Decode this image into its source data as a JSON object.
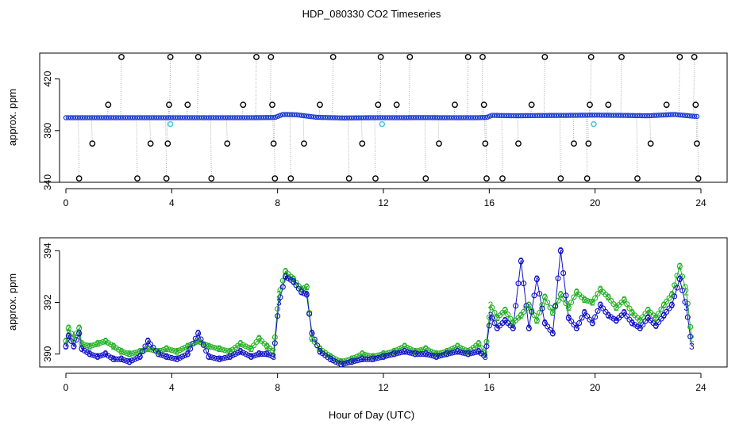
{
  "title": "HDP_080330  CO2 Timeseries",
  "xlabel": "Hour of Day (UTC)",
  "colors": {
    "outlier_marker": "#000000",
    "trace_line": "#999999",
    "main_marker": "#1f3fd0",
    "secondary_marker": "#40c8d8",
    "series2": "#22b022",
    "series3": "#1010c8"
  },
  "chart_data": [
    {
      "type": "scatter",
      "ylabel": "approx. ppm",
      "xlim": [
        0,
        24
      ],
      "ylim": [
        340,
        440
      ],
      "x_ticks": [
        0,
        4,
        8,
        12,
        16,
        20,
        24
      ],
      "x_tick_labels": [
        "0",
        "4",
        "8",
        "12",
        "16",
        "20",
        "24"
      ],
      "y_ticks": [
        340,
        380,
        420
      ],
      "y_tick_labels": [
        "340",
        "380",
        "420"
      ],
      "baseline": [
        {
          "x": 0.0,
          "y": 390.0
        },
        {
          "x": 1.0,
          "y": 390.0
        },
        {
          "x": 2.0,
          "y": 390.0
        },
        {
          "x": 3.0,
          "y": 390.0
        },
        {
          "x": 4.0,
          "y": 390.0
        },
        {
          "x": 5.0,
          "y": 390.0
        },
        {
          "x": 6.0,
          "y": 390.0
        },
        {
          "x": 7.0,
          "y": 390.0
        },
        {
          "x": 7.9,
          "y": 390.2
        },
        {
          "x": 8.2,
          "y": 392.5
        },
        {
          "x": 8.7,
          "y": 392.3
        },
        {
          "x": 9.2,
          "y": 391.0
        },
        {
          "x": 9.5,
          "y": 390.3
        },
        {
          "x": 10.5,
          "y": 389.8
        },
        {
          "x": 11.5,
          "y": 390.0
        },
        {
          "x": 12.5,
          "y": 390.0
        },
        {
          "x": 13.5,
          "y": 390.1
        },
        {
          "x": 14.5,
          "y": 390.0
        },
        {
          "x": 15.5,
          "y": 390.0
        },
        {
          "x": 15.9,
          "y": 390.2
        },
        {
          "x": 16.1,
          "y": 391.8
        },
        {
          "x": 17.0,
          "y": 391.5
        },
        {
          "x": 18.0,
          "y": 391.7
        },
        {
          "x": 19.0,
          "y": 391.8
        },
        {
          "x": 20.0,
          "y": 392.0
        },
        {
          "x": 21.0,
          "y": 391.8
        },
        {
          "x": 22.0,
          "y": 391.5
        },
        {
          "x": 23.0,
          "y": 392.5
        },
        {
          "x": 23.8,
          "y": 391.0
        }
      ],
      "secondary_points": [
        {
          "x": 3.95,
          "y": 385
        },
        {
          "x": 11.95,
          "y": 385
        },
        {
          "x": 19.95,
          "y": 385
        }
      ],
      "outliers": [
        {
          "x": 0.5,
          "y": 343
        },
        {
          "x": 1.0,
          "y": 370
        },
        {
          "x": 1.6,
          "y": 400
        },
        {
          "x": 2.1,
          "y": 437
        },
        {
          "x": 2.7,
          "y": 343
        },
        {
          "x": 3.2,
          "y": 370
        },
        {
          "x": 3.8,
          "y": 343
        },
        {
          "x": 3.85,
          "y": 370
        },
        {
          "x": 3.9,
          "y": 400
        },
        {
          "x": 3.95,
          "y": 437
        },
        {
          "x": 4.6,
          "y": 400
        },
        {
          "x": 5.0,
          "y": 437
        },
        {
          "x": 5.5,
          "y": 343
        },
        {
          "x": 6.1,
          "y": 370
        },
        {
          "x": 6.7,
          "y": 400
        },
        {
          "x": 7.2,
          "y": 437
        },
        {
          "x": 7.75,
          "y": 437
        },
        {
          "x": 7.8,
          "y": 400
        },
        {
          "x": 7.85,
          "y": 370
        },
        {
          "x": 7.9,
          "y": 343
        },
        {
          "x": 8.5,
          "y": 343
        },
        {
          "x": 9.0,
          "y": 370
        },
        {
          "x": 9.6,
          "y": 400
        },
        {
          "x": 10.1,
          "y": 437
        },
        {
          "x": 10.7,
          "y": 343
        },
        {
          "x": 11.2,
          "y": 370
        },
        {
          "x": 11.7,
          "y": 343
        },
        {
          "x": 11.8,
          "y": 400
        },
        {
          "x": 11.9,
          "y": 437
        },
        {
          "x": 12.5,
          "y": 400
        },
        {
          "x": 13.0,
          "y": 437
        },
        {
          "x": 13.6,
          "y": 343
        },
        {
          "x": 14.1,
          "y": 370
        },
        {
          "x": 14.7,
          "y": 400
        },
        {
          "x": 15.2,
          "y": 437
        },
        {
          "x": 15.75,
          "y": 437
        },
        {
          "x": 15.8,
          "y": 400
        },
        {
          "x": 15.85,
          "y": 370
        },
        {
          "x": 15.9,
          "y": 343
        },
        {
          "x": 16.5,
          "y": 343
        },
        {
          "x": 17.1,
          "y": 370
        },
        {
          "x": 17.6,
          "y": 400
        },
        {
          "x": 18.1,
          "y": 437
        },
        {
          "x": 18.7,
          "y": 343
        },
        {
          "x": 19.2,
          "y": 370
        },
        {
          "x": 19.7,
          "y": 343
        },
        {
          "x": 19.75,
          "y": 370
        },
        {
          "x": 19.8,
          "y": 400
        },
        {
          "x": 19.85,
          "y": 437
        },
        {
          "x": 20.5,
          "y": 400
        },
        {
          "x": 21.0,
          "y": 437
        },
        {
          "x": 21.6,
          "y": 343
        },
        {
          "x": 22.1,
          "y": 370
        },
        {
          "x": 22.7,
          "y": 400
        },
        {
          "x": 23.2,
          "y": 437
        },
        {
          "x": 23.75,
          "y": 437
        },
        {
          "x": 23.8,
          "y": 400
        },
        {
          "x": 23.85,
          "y": 370
        },
        {
          "x": 23.9,
          "y": 343
        }
      ]
    },
    {
      "type": "line",
      "ylabel": "approx. ppm",
      "xlim": [
        0,
        24
      ],
      "ylim": [
        389.5,
        394.5
      ],
      "x_ticks": [
        0,
        4,
        8,
        12,
        16,
        20,
        24
      ],
      "x_tick_labels": [
        "0",
        "4",
        "8",
        "12",
        "16",
        "20",
        "24"
      ],
      "y_ticks": [
        390,
        392,
        394
      ],
      "y_tick_labels": [
        "390",
        "392",
        "394"
      ],
      "series": [
        {
          "marker": "2",
          "color_key": "series2",
          "points": [
            {
              "x": 0.0,
              "y": 390.5
            },
            {
              "x": 0.1,
              "y": 391.0
            },
            {
              "x": 0.3,
              "y": 390.6
            },
            {
              "x": 0.5,
              "y": 391.0
            },
            {
              "x": 0.6,
              "y": 390.4
            },
            {
              "x": 0.9,
              "y": 390.3
            },
            {
              "x": 1.2,
              "y": 390.4
            },
            {
              "x": 1.5,
              "y": 390.5
            },
            {
              "x": 1.8,
              "y": 390.3
            },
            {
              "x": 2.1,
              "y": 390.1
            },
            {
              "x": 2.4,
              "y": 390.0
            },
            {
              "x": 2.8,
              "y": 390.1
            },
            {
              "x": 3.1,
              "y": 390.2
            },
            {
              "x": 3.5,
              "y": 390.1
            },
            {
              "x": 3.8,
              "y": 390.2
            },
            {
              "x": 4.2,
              "y": 390.1
            },
            {
              "x": 4.6,
              "y": 390.3
            },
            {
              "x": 5.0,
              "y": 390.5
            },
            {
              "x": 5.4,
              "y": 390.3
            },
            {
              "x": 5.8,
              "y": 390.2
            },
            {
              "x": 6.2,
              "y": 390.1
            },
            {
              "x": 6.6,
              "y": 390.4
            },
            {
              "x": 7.0,
              "y": 390.2
            },
            {
              "x": 7.3,
              "y": 390.6
            },
            {
              "x": 7.6,
              "y": 390.3
            },
            {
              "x": 7.85,
              "y": 390.1
            },
            {
              "x": 8.05,
              "y": 392.3
            },
            {
              "x": 8.3,
              "y": 393.2
            },
            {
              "x": 8.6,
              "y": 392.9
            },
            {
              "x": 8.9,
              "y": 392.5
            },
            {
              "x": 9.1,
              "y": 392.6
            },
            {
              "x": 9.3,
              "y": 390.6
            },
            {
              "x": 9.6,
              "y": 390.2
            },
            {
              "x": 10.0,
              "y": 389.9
            },
            {
              "x": 10.4,
              "y": 389.7
            },
            {
              "x": 10.8,
              "y": 389.8
            },
            {
              "x": 11.2,
              "y": 390.0
            },
            {
              "x": 11.6,
              "y": 389.9
            },
            {
              "x": 12.0,
              "y": 390.0
            },
            {
              "x": 12.4,
              "y": 390.1
            },
            {
              "x": 12.8,
              "y": 390.3
            },
            {
              "x": 13.2,
              "y": 390.1
            },
            {
              "x": 13.6,
              "y": 390.2
            },
            {
              "x": 14.0,
              "y": 390.0
            },
            {
              "x": 14.4,
              "y": 390.1
            },
            {
              "x": 14.8,
              "y": 390.3
            },
            {
              "x": 15.2,
              "y": 390.1
            },
            {
              "x": 15.6,
              "y": 390.4
            },
            {
              "x": 15.85,
              "y": 390.0
            },
            {
              "x": 16.05,
              "y": 391.9
            },
            {
              "x": 16.3,
              "y": 391.4
            },
            {
              "x": 16.6,
              "y": 391.7
            },
            {
              "x": 16.9,
              "y": 391.2
            },
            {
              "x": 17.2,
              "y": 391.5
            },
            {
              "x": 17.5,
              "y": 391.9
            },
            {
              "x": 17.8,
              "y": 391.3
            },
            {
              "x": 18.1,
              "y": 392.2
            },
            {
              "x": 18.4,
              "y": 391.6
            },
            {
              "x": 18.7,
              "y": 392.3
            },
            {
              "x": 19.0,
              "y": 391.8
            },
            {
              "x": 19.3,
              "y": 392.4
            },
            {
              "x": 19.6,
              "y": 392.1
            },
            {
              "x": 19.9,
              "y": 392.0
            },
            {
              "x": 20.2,
              "y": 392.5
            },
            {
              "x": 20.5,
              "y": 392.2
            },
            {
              "x": 20.8,
              "y": 391.8
            },
            {
              "x": 21.1,
              "y": 392.1
            },
            {
              "x": 21.4,
              "y": 391.6
            },
            {
              "x": 21.7,
              "y": 391.3
            },
            {
              "x": 22.0,
              "y": 391.7
            },
            {
              "x": 22.3,
              "y": 391.4
            },
            {
              "x": 22.6,
              "y": 391.9
            },
            {
              "x": 22.9,
              "y": 392.3
            },
            {
              "x": 23.2,
              "y": 393.4
            },
            {
              "x": 23.45,
              "y": 392.4
            },
            {
              "x": 23.65,
              "y": 390.6
            }
          ]
        },
        {
          "marker": "3",
          "color_key": "series3",
          "points": [
            {
              "x": 0.0,
              "y": 390.3
            },
            {
              "x": 0.1,
              "y": 390.7
            },
            {
              "x": 0.3,
              "y": 390.3
            },
            {
              "x": 0.5,
              "y": 390.8
            },
            {
              "x": 0.6,
              "y": 390.2
            },
            {
              "x": 0.9,
              "y": 390.0
            },
            {
              "x": 1.2,
              "y": 389.9
            },
            {
              "x": 1.5,
              "y": 390.0
            },
            {
              "x": 1.8,
              "y": 389.8
            },
            {
              "x": 2.1,
              "y": 389.8
            },
            {
              "x": 2.4,
              "y": 389.7
            },
            {
              "x": 2.8,
              "y": 389.9
            },
            {
              "x": 3.1,
              "y": 390.5
            },
            {
              "x": 3.5,
              "y": 390.0
            },
            {
              "x": 3.8,
              "y": 389.9
            },
            {
              "x": 4.2,
              "y": 389.8
            },
            {
              "x": 4.6,
              "y": 390.0
            },
            {
              "x": 5.0,
              "y": 390.8
            },
            {
              "x": 5.4,
              "y": 389.9
            },
            {
              "x": 5.8,
              "y": 389.8
            },
            {
              "x": 6.2,
              "y": 389.9
            },
            {
              "x": 6.6,
              "y": 390.1
            },
            {
              "x": 7.0,
              "y": 389.9
            },
            {
              "x": 7.3,
              "y": 390.0
            },
            {
              "x": 7.6,
              "y": 390.0
            },
            {
              "x": 7.85,
              "y": 389.9
            },
            {
              "x": 8.05,
              "y": 392.0
            },
            {
              "x": 8.3,
              "y": 393.0
            },
            {
              "x": 8.6,
              "y": 392.8
            },
            {
              "x": 8.9,
              "y": 392.4
            },
            {
              "x": 9.1,
              "y": 392.3
            },
            {
              "x": 9.3,
              "y": 390.8
            },
            {
              "x": 9.6,
              "y": 390.1
            },
            {
              "x": 10.0,
              "y": 389.8
            },
            {
              "x": 10.4,
              "y": 389.6
            },
            {
              "x": 10.8,
              "y": 389.7
            },
            {
              "x": 11.2,
              "y": 389.8
            },
            {
              "x": 11.6,
              "y": 389.8
            },
            {
              "x": 12.0,
              "y": 389.9
            },
            {
              "x": 12.4,
              "y": 390.0
            },
            {
              "x": 12.8,
              "y": 390.1
            },
            {
              "x": 13.2,
              "y": 390.0
            },
            {
              "x": 13.6,
              "y": 390.0
            },
            {
              "x": 14.0,
              "y": 389.9
            },
            {
              "x": 14.4,
              "y": 390.0
            },
            {
              "x": 14.8,
              "y": 390.1
            },
            {
              "x": 15.2,
              "y": 390.0
            },
            {
              "x": 15.6,
              "y": 390.1
            },
            {
              "x": 15.85,
              "y": 389.9
            },
            {
              "x": 16.05,
              "y": 391.5
            },
            {
              "x": 16.3,
              "y": 391.0
            },
            {
              "x": 16.6,
              "y": 391.3
            },
            {
              "x": 16.9,
              "y": 391.0
            },
            {
              "x": 17.2,
              "y": 393.6
            },
            {
              "x": 17.5,
              "y": 391.0
            },
            {
              "x": 17.8,
              "y": 392.9
            },
            {
              "x": 18.1,
              "y": 391.2
            },
            {
              "x": 18.4,
              "y": 390.8
            },
            {
              "x": 18.7,
              "y": 394.0
            },
            {
              "x": 19.0,
              "y": 391.4
            },
            {
              "x": 19.3,
              "y": 391.0
            },
            {
              "x": 19.6,
              "y": 391.6
            },
            {
              "x": 19.9,
              "y": 391.2
            },
            {
              "x": 20.2,
              "y": 391.9
            },
            {
              "x": 20.5,
              "y": 391.5
            },
            {
              "x": 20.8,
              "y": 391.3
            },
            {
              "x": 21.1,
              "y": 391.6
            },
            {
              "x": 21.4,
              "y": 391.2
            },
            {
              "x": 21.7,
              "y": 391.0
            },
            {
              "x": 22.0,
              "y": 391.4
            },
            {
              "x": 22.3,
              "y": 391.1
            },
            {
              "x": 22.6,
              "y": 391.5
            },
            {
              "x": 22.9,
              "y": 391.9
            },
            {
              "x": 23.2,
              "y": 392.9
            },
            {
              "x": 23.45,
              "y": 391.8
            },
            {
              "x": 23.65,
              "y": 390.3
            }
          ]
        }
      ]
    }
  ]
}
